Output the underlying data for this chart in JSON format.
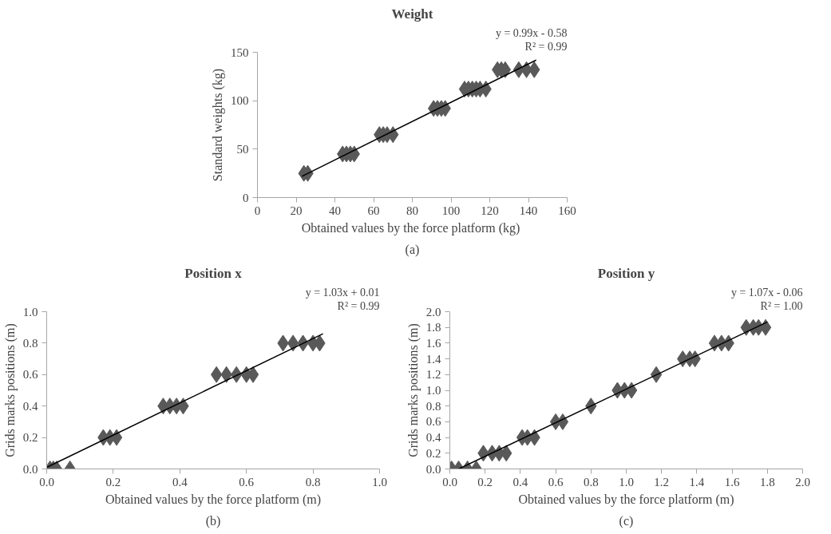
{
  "chart_data": [
    {
      "type": "scatter",
      "title": "Weight",
      "xlabel": "Obtained values by the  force platform (kg)",
      "ylabel": "Standard weights (kg)",
      "annotations": [
        "y = 0.99x - 0.58",
        "R² = 0.99",
        "(a)"
      ],
      "xlim": [
        0,
        160
      ],
      "xticks": [
        0,
        20,
        40,
        60,
        80,
        100,
        120,
        140,
        160
      ],
      "ylim": [
        0,
        150
      ],
      "yticks": [
        0,
        50,
        100,
        150
      ],
      "grid": false,
      "series": [
        {
          "marker": "diamond",
          "color": "#595959",
          "x": [
            24,
            26,
            44,
            46,
            48,
            50,
            63,
            65,
            67,
            70,
            91,
            93,
            95,
            97,
            107,
            109,
            111,
            113,
            115,
            118,
            124,
            126,
            128,
            135,
            139,
            143
          ],
          "values": [
            25,
            25,
            45,
            45,
            45,
            45,
            65,
            65,
            65,
            65,
            92,
            92,
            92,
            92,
            112,
            112,
            112,
            112,
            112,
            112,
            132,
            132,
            132,
            132,
            132,
            132
          ]
        },
        {
          "type": "line",
          "marker": "none",
          "color": "#000000",
          "x": [
            23,
            144
          ],
          "values": [
            22,
            142
          ]
        }
      ]
    },
    {
      "type": "scatter",
      "title": "Position x",
      "xlabel": "Obtained values by the force platform (m)",
      "ylabel": "Grids marks positions (m)",
      "annotations": [
        "y = 1.03x + 0.01",
        "R² = 0.99",
        "(b)"
      ],
      "xlim": [
        0,
        1
      ],
      "xticks": [
        {
          "value": 0,
          "label": "0.0"
        },
        0.2,
        0.4,
        0.6,
        0.8,
        {
          "value": 1,
          "label": "1.0"
        }
      ],
      "ylim": [
        0,
        1
      ],
      "yticks": [
        {
          "value": 0,
          "label": "0.0"
        },
        0.2,
        0.4,
        0.6,
        0.8,
        {
          "value": 1,
          "label": "1.0"
        }
      ],
      "grid": false,
      "series": [
        {
          "marker": "diamond",
          "color": "#595959",
          "x": [
            0.01,
            0.02,
            0.03,
            0.07,
            0.17,
            0.19,
            0.21,
            0.35,
            0.37,
            0.39,
            0.41,
            0.51,
            0.54,
            0.57,
            0.6,
            0.62,
            0.71,
            0.74,
            0.77,
            0.8,
            0.82
          ],
          "values": [
            0,
            0,
            0,
            0,
            0.2,
            0.2,
            0.2,
            0.4,
            0.4,
            0.4,
            0.4,
            0.6,
            0.6,
            0.6,
            0.6,
            0.6,
            0.8,
            0.8,
            0.8,
            0.8,
            0.8
          ]
        },
        {
          "type": "line",
          "marker": "none",
          "color": "#000000",
          "x": [
            0.0,
            0.83
          ],
          "values": [
            0.01,
            0.86
          ]
        }
      ]
    },
    {
      "type": "scatter",
      "title": "Position y",
      "xlabel": "Obtained values by the force platform (m)",
      "ylabel": "Grids marks positions (m)",
      "annotations": [
        "y = 1.07x - 0.06",
        "R² = 1.00",
        "(c)"
      ],
      "xlim": [
        0,
        2
      ],
      "xticks": [
        {
          "value": 0,
          "label": "0.0"
        },
        0.2,
        0.4,
        0.6,
        0.8,
        {
          "value": 1,
          "label": "1.0"
        },
        1.2,
        1.4,
        1.6,
        1.8,
        {
          "value": 2,
          "label": "2.0"
        }
      ],
      "ylim": [
        0,
        2
      ],
      "yticks": [
        {
          "value": 0,
          "label": "0.0"
        },
        0.2,
        0.4,
        0.6,
        0.8,
        {
          "value": 1,
          "label": "1.0"
        },
        1.2,
        1.4,
        1.6,
        1.8,
        {
          "value": 2,
          "label": "2.0"
        }
      ],
      "grid": false,
      "series": [
        {
          "marker": "diamond",
          "color": "#595959",
          "x": [
            0.01,
            0.05,
            0.1,
            0.15,
            0.19,
            0.24,
            0.28,
            0.32,
            0.41,
            0.44,
            0.48,
            0.6,
            0.64,
            0.8,
            0.95,
            0.99,
            1.03,
            1.17,
            1.32,
            1.36,
            1.39,
            1.5,
            1.54,
            1.58,
            1.68,
            1.72,
            1.75,
            1.79
          ],
          "values": [
            0,
            0,
            0,
            0,
            0.2,
            0.2,
            0.2,
            0.2,
            0.4,
            0.4,
            0.4,
            0.6,
            0.6,
            0.8,
            1.0,
            1.0,
            1.0,
            1.2,
            1.4,
            1.4,
            1.4,
            1.6,
            1.6,
            1.6,
            1.8,
            1.8,
            1.8,
            1.8
          ]
        },
        {
          "type": "line",
          "marker": "none",
          "color": "#000000",
          "x": [
            0.05,
            1.8
          ],
          "values": [
            0.0,
            1.87
          ]
        }
      ]
    }
  ]
}
